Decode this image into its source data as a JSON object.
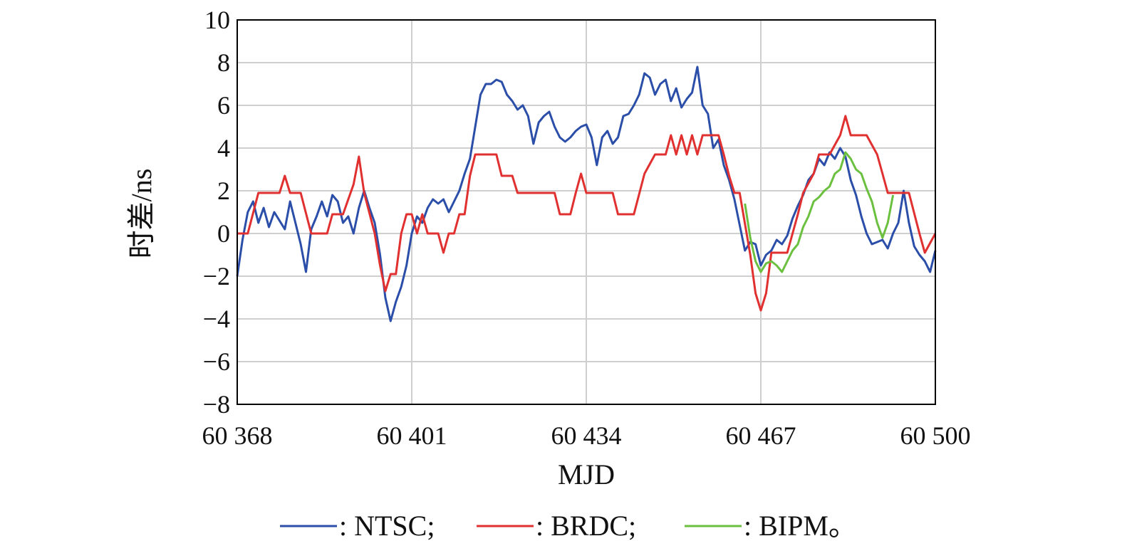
{
  "chart_data": {
    "type": "line",
    "xlabel": "MJD",
    "ylabel": "时差/ns",
    "xlim": [
      60368,
      60500
    ],
    "ylim": [
      -8,
      10
    ],
    "xticks": [
      60368,
      60401,
      60434,
      60467,
      60500
    ],
    "xtick_labels": [
      "60 368",
      "60 401",
      "60 434",
      "60 467",
      "60 500"
    ],
    "yticks": [
      -8,
      -6,
      -4,
      -2,
      0,
      2,
      4,
      6,
      8,
      10
    ],
    "ytick_labels": [
      "−8",
      "−6",
      "−4",
      "−2",
      "0",
      "2",
      "4",
      "6",
      "8",
      "10"
    ],
    "grid": "vertical at x ticks, horizontal at y ticks",
    "legend": {
      "position": "bottom",
      "entries": [
        {
          "label": ": NTSC;",
          "color": "#2b4ea8"
        },
        {
          "label": ": BRDC;",
          "color": "#e03030"
        },
        {
          "label": ": BIPM。",
          "color": "#6cc040"
        }
      ]
    },
    "series": [
      {
        "name": "NTSC",
        "color": "#2b4ea8",
        "points": [
          [
            60368,
            -2.0
          ],
          [
            60369,
            -0.3
          ],
          [
            60370,
            1.0
          ],
          [
            60371,
            1.5
          ],
          [
            60372,
            0.5
          ],
          [
            60373,
            1.2
          ],
          [
            60374,
            0.3
          ],
          [
            60375,
            1.0
          ],
          [
            60376,
            0.6
          ],
          [
            60377,
            0.2
          ],
          [
            60378,
            1.5
          ],
          [
            60379,
            0.5
          ],
          [
            60380,
            -0.5
          ],
          [
            60381,
            -1.8
          ],
          [
            60382,
            0.2
          ],
          [
            60383,
            0.8
          ],
          [
            60384,
            1.5
          ],
          [
            60385,
            0.8
          ],
          [
            60386,
            1.8
          ],
          [
            60387,
            1.5
          ],
          [
            60388,
            0.5
          ],
          [
            60389,
            0.8
          ],
          [
            60390,
            0.0
          ],
          [
            60391,
            1.2
          ],
          [
            60392,
            2.0
          ],
          [
            60393,
            1.2
          ],
          [
            60394,
            0.5
          ],
          [
            60395,
            -1.0
          ],
          [
            60396,
            -3.0
          ],
          [
            60397,
            -4.1
          ],
          [
            60398,
            -3.2
          ],
          [
            60399,
            -2.5
          ],
          [
            60400,
            -1.5
          ],
          [
            60401,
            0.0
          ],
          [
            60402,
            0.8
          ],
          [
            60403,
            0.5
          ],
          [
            60404,
            1.2
          ],
          [
            60405,
            1.6
          ],
          [
            60406,
            1.4
          ],
          [
            60407,
            1.6
          ],
          [
            60408,
            1.0
          ],
          [
            60409,
            1.5
          ],
          [
            60410,
            2.0
          ],
          [
            60411,
            2.8
          ],
          [
            60412,
            3.5
          ],
          [
            60413,
            5.0
          ],
          [
            60414,
            6.5
          ],
          [
            60415,
            7.0
          ],
          [
            60416,
            7.0
          ],
          [
            60417,
            7.2
          ],
          [
            60418,
            7.1
          ],
          [
            60419,
            6.5
          ],
          [
            60420,
            6.2
          ],
          [
            60421,
            5.8
          ],
          [
            60422,
            6.0
          ],
          [
            60423,
            5.5
          ],
          [
            60424,
            4.2
          ],
          [
            60425,
            5.2
          ],
          [
            60426,
            5.5
          ],
          [
            60427,
            5.7
          ],
          [
            60428,
            5.0
          ],
          [
            60429,
            4.5
          ],
          [
            60430,
            4.3
          ],
          [
            60431,
            4.5
          ],
          [
            60432,
            4.8
          ],
          [
            60433,
            5.0
          ],
          [
            60434,
            5.1
          ],
          [
            60435,
            4.5
          ],
          [
            60436,
            3.2
          ],
          [
            60437,
            4.5
          ],
          [
            60438,
            4.8
          ],
          [
            60439,
            4.2
          ],
          [
            60440,
            4.5
          ],
          [
            60441,
            5.5
          ],
          [
            60442,
            5.6
          ],
          [
            60443,
            6.0
          ],
          [
            60444,
            6.5
          ],
          [
            60445,
            7.5
          ],
          [
            60446,
            7.3
          ],
          [
            60447,
            6.5
          ],
          [
            60448,
            7.0
          ],
          [
            60449,
            7.2
          ],
          [
            60450,
            6.2
          ],
          [
            60451,
            6.8
          ],
          [
            60452,
            5.9
          ],
          [
            60453,
            6.3
          ],
          [
            60454,
            6.6
          ],
          [
            60455,
            7.8
          ],
          [
            60456,
            6.0
          ],
          [
            60457,
            5.6
          ],
          [
            60458,
            4.0
          ],
          [
            60459,
            4.4
          ],
          [
            60460,
            3.2
          ],
          [
            60461,
            2.5
          ],
          [
            60462,
            1.6
          ],
          [
            60463,
            0.4
          ],
          [
            60464,
            -0.8
          ],
          [
            60465,
            -0.4
          ],
          [
            60466,
            -0.5
          ],
          [
            60467,
            -1.5
          ],
          [
            60468,
            -1.0
          ],
          [
            60469,
            -0.8
          ],
          [
            60470,
            -0.3
          ],
          [
            60471,
            -0.5
          ],
          [
            60472,
            -0.1
          ],
          [
            60473,
            0.7
          ],
          [
            60474,
            1.3
          ],
          [
            60475,
            1.8
          ],
          [
            60476,
            2.5
          ],
          [
            60477,
            2.8
          ],
          [
            60478,
            3.5
          ],
          [
            60479,
            3.2
          ],
          [
            60480,
            3.8
          ],
          [
            60481,
            3.5
          ],
          [
            60482,
            4.0
          ],
          [
            60483,
            3.6
          ],
          [
            60484,
            2.5
          ],
          [
            60485,
            1.8
          ],
          [
            60486,
            0.8
          ],
          [
            60487,
            0.0
          ],
          [
            60488,
            -0.5
          ],
          [
            60489,
            -0.4
          ],
          [
            60490,
            -0.3
          ],
          [
            60491,
            -0.7
          ],
          [
            60492,
            0.0
          ],
          [
            60493,
            0.5
          ],
          [
            60494,
            2.0
          ],
          [
            60495,
            0.5
          ],
          [
            60496,
            -0.6
          ],
          [
            60497,
            -1.0
          ],
          [
            60498,
            -1.3
          ],
          [
            60499,
            -1.8
          ],
          [
            60500,
            -0.8
          ]
        ]
      },
      {
        "name": "BRDC",
        "color": "#e03030",
        "points": [
          [
            60368,
            0.0
          ],
          [
            60370,
            0.0
          ],
          [
            60372,
            1.9
          ],
          [
            60376,
            1.9
          ],
          [
            60377,
            2.7
          ],
          [
            60378,
            1.9
          ],
          [
            60380,
            1.9
          ],
          [
            60382,
            0.0
          ],
          [
            60385,
            0.0
          ],
          [
            60386,
            0.9
          ],
          [
            60388,
            0.9
          ],
          [
            60390,
            2.3
          ],
          [
            60391,
            3.6
          ],
          [
            60392,
            1.9
          ],
          [
            60394,
            0.0
          ],
          [
            60395,
            -1.5
          ],
          [
            60396,
            -2.7
          ],
          [
            60397,
            -1.9
          ],
          [
            60398,
            -1.9
          ],
          [
            60399,
            0.0
          ],
          [
            60400,
            0.9
          ],
          [
            60401,
            0.9
          ],
          [
            60402,
            0.0
          ],
          [
            60403,
            0.9
          ],
          [
            60404,
            0.0
          ],
          [
            60406,
            0.0
          ],
          [
            60407,
            -0.9
          ],
          [
            60408,
            0.0
          ],
          [
            60409,
            0.0
          ],
          [
            60410,
            0.9
          ],
          [
            60411,
            0.9
          ],
          [
            60412,
            2.7
          ],
          [
            60413,
            3.7
          ],
          [
            60417,
            3.7
          ],
          [
            60418,
            2.7
          ],
          [
            60420,
            2.7
          ],
          [
            60421,
            1.9
          ],
          [
            60428,
            1.9
          ],
          [
            60429,
            0.9
          ],
          [
            60431,
            0.9
          ],
          [
            60432,
            1.9
          ],
          [
            60433,
            2.8
          ],
          [
            60434,
            1.9
          ],
          [
            60436,
            1.9
          ],
          [
            60439,
            1.9
          ],
          [
            60440,
            0.9
          ],
          [
            60443,
            0.9
          ],
          [
            60445,
            2.8
          ],
          [
            60447,
            3.7
          ],
          [
            60449,
            3.7
          ],
          [
            60450,
            4.6
          ],
          [
            60451,
            3.7
          ],
          [
            60452,
            4.6
          ],
          [
            60453,
            3.7
          ],
          [
            60454,
            4.6
          ],
          [
            60455,
            3.7
          ],
          [
            60456,
            4.6
          ],
          [
            60459,
            4.6
          ],
          [
            60460,
            3.7
          ],
          [
            60461,
            2.7
          ],
          [
            60462,
            1.9
          ],
          [
            60463,
            1.9
          ],
          [
            60465,
            -1.0
          ],
          [
            60466,
            -2.8
          ],
          [
            60467,
            -3.6
          ],
          [
            60468,
            -2.8
          ],
          [
            60469,
            -0.9
          ],
          [
            60472,
            -0.9
          ],
          [
            60474,
            0.9
          ],
          [
            60475,
            1.9
          ],
          [
            60477,
            2.8
          ],
          [
            60478,
            3.7
          ],
          [
            60480,
            3.7
          ],
          [
            60482,
            4.6
          ],
          [
            60483,
            5.5
          ],
          [
            60484,
            4.6
          ],
          [
            60487,
            4.6
          ],
          [
            60489,
            3.7
          ],
          [
            60490,
            2.8
          ],
          [
            60491,
            1.9
          ],
          [
            60495,
            1.9
          ],
          [
            60497,
            0.0
          ],
          [
            60498,
            -0.9
          ],
          [
            60500,
            0.0
          ]
        ]
      },
      {
        "name": "BIPM",
        "color": "#6cc040",
        "points": [
          [
            60464,
            1.4
          ],
          [
            60465,
            -0.2
          ],
          [
            60466,
            -1.3
          ],
          [
            60467,
            -1.8
          ],
          [
            60468,
            -1.4
          ],
          [
            60469,
            -1.3
          ],
          [
            60470,
            -1.5
          ],
          [
            60471,
            -1.8
          ],
          [
            60472,
            -1.3
          ],
          [
            60473,
            -0.8
          ],
          [
            60474,
            -0.5
          ],
          [
            60475,
            0.3
          ],
          [
            60476,
            0.8
          ],
          [
            60477,
            1.5
          ],
          [
            60478,
            1.7
          ],
          [
            60479,
            2.0
          ],
          [
            60480,
            2.2
          ],
          [
            60481,
            2.8
          ],
          [
            60482,
            3.0
          ],
          [
            60483,
            3.8
          ],
          [
            60484,
            3.5
          ],
          [
            60485,
            3.0
          ],
          [
            60486,
            2.8
          ],
          [
            60487,
            2.1
          ],
          [
            60488,
            1.5
          ],
          [
            60489,
            0.5
          ],
          [
            60490,
            -0.2
          ],
          [
            60491,
            0.5
          ],
          [
            60492,
            1.8
          ]
        ]
      }
    ]
  }
}
